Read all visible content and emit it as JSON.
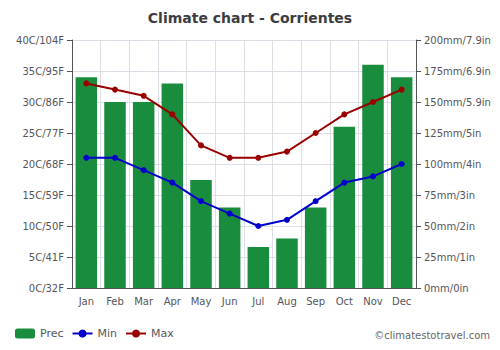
{
  "chart_data": {
    "type": "bar",
    "title": "Climate chart - Corrientes",
    "categories": [
      "Jan",
      "Feb",
      "Mar",
      "Apr",
      "May",
      "Jun",
      "Jul",
      "Aug",
      "Sep",
      "Oct",
      "Nov",
      "Dec"
    ],
    "series": [
      {
        "name": "Prec",
        "type": "bar",
        "axis": "y2",
        "color": "#1a8c3e",
        "values": [
          170,
          150,
          150,
          165,
          87,
          65,
          33,
          40,
          65,
          130,
          180,
          170
        ]
      },
      {
        "name": "Min",
        "type": "line",
        "color": "#0000cc",
        "marker": "circle",
        "line_style": "solid",
        "values": [
          21,
          21,
          19,
          17,
          14,
          12,
          10,
          11,
          14,
          17,
          18,
          20
        ]
      },
      {
        "name": "Max",
        "type": "line",
        "color": "#990000",
        "marker": "circle",
        "line_style": "solid",
        "values": [
          33,
          32,
          31,
          28,
          23,
          21,
          21,
          22,
          25,
          28,
          30,
          32
        ]
      }
    ],
    "ylim": [
      0,
      40
    ],
    "yticks": [
      {
        "value": 0,
        "label": "0C/32F"
      },
      {
        "value": 5,
        "label": "5C/41F"
      },
      {
        "value": 10,
        "label": "10C/50F"
      },
      {
        "value": 15,
        "label": "15C/59F"
      },
      {
        "value": 20,
        "label": "20C/68F"
      },
      {
        "value": 25,
        "label": "25C/77F"
      },
      {
        "value": 30,
        "label": "30C/86F"
      },
      {
        "value": 35,
        "label": "35C/95F"
      },
      {
        "value": 40,
        "label": "40C/104F"
      }
    ],
    "y2lim": [
      0,
      200
    ],
    "y2ticks": [
      {
        "value": 0,
        "label": "0mm/0in"
      },
      {
        "value": 25,
        "label": "25mm/1in"
      },
      {
        "value": 50,
        "label": "50mm/2in"
      },
      {
        "value": 75,
        "label": "75mm/3in"
      },
      {
        "value": 100,
        "label": "100mm/4in"
      },
      {
        "value": 125,
        "label": "125mm/5in"
      },
      {
        "value": 150,
        "label": "150mm/5.9in"
      },
      {
        "value": 175,
        "label": "175mm/6.9in"
      },
      {
        "value": 200,
        "label": "200mm/7.9in"
      }
    ],
    "grid": true,
    "legend": "lower left",
    "annotations": [
      "©climatestotravel.com"
    ]
  }
}
